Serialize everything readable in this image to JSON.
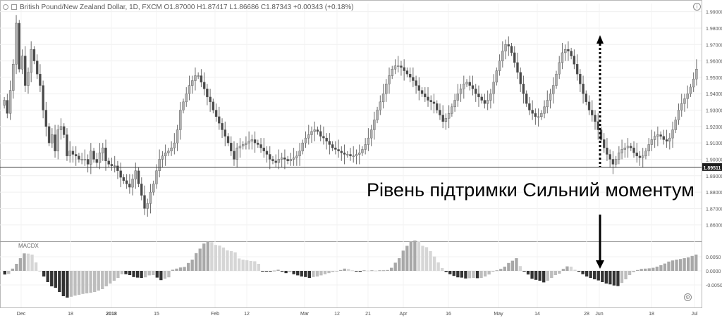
{
  "header": {
    "symbol": "British Pound/New Zealand Dollar, 1D, FXCM",
    "ohlc": "O1.87000 H1.87417 L1.86686 C1.87343 +0.00343 (+0.18%)"
  },
  "annotation": "Рівень підтримки Сильний моментум",
  "macd_label": "MACDX",
  "icons": {
    "info": "info-icon",
    "settings": "settings-icon",
    "header": [
      "eye-icon",
      "menu-icon"
    ]
  },
  "chart_data": [
    {
      "type": "candlestick",
      "ylim": [
        1.85,
        1.995
      ],
      "yticks": [
        "1.99000",
        "1.98000",
        "1.97000",
        "1.96000",
        "1.95000",
        "1.94000",
        "1.93000",
        "1.92000",
        "1.91000",
        "1.90000",
        "1.89000",
        "1.88000",
        "1.87000",
        "1.86000"
      ],
      "current_price": "1.89511",
      "support_level": 1.8951,
      "xticks": [
        "Dec",
        "18",
        "2018",
        "15",
        "Feb",
        "12",
        "Mar",
        "12",
        "21",
        "Apr",
        "16",
        "May",
        "14",
        "28",
        "Jun",
        "18",
        "Jul"
      ],
      "closes": [
        1.936,
        1.928,
        1.942,
        1.958,
        1.983,
        1.955,
        1.963,
        1.945,
        1.953,
        1.967,
        1.96,
        1.952,
        1.945,
        1.93,
        1.92,
        1.91,
        1.915,
        1.905,
        1.918,
        1.92,
        1.915,
        1.902,
        1.905,
        1.903,
        1.902,
        1.9,
        1.9,
        1.9,
        1.897,
        1.905,
        1.9,
        1.898,
        1.904,
        1.907,
        1.899,
        1.897,
        1.896,
        1.896,
        1.893,
        1.889,
        1.887,
        1.885,
        1.883,
        1.888,
        1.893,
        1.885,
        1.878,
        1.87,
        1.873,
        1.88,
        1.885,
        1.893,
        1.9,
        1.902,
        1.904,
        1.905,
        1.907,
        1.91,
        1.918,
        1.93,
        1.935,
        1.94,
        1.945,
        1.948,
        1.951,
        1.951,
        1.947,
        1.943,
        1.938,
        1.935,
        1.93,
        1.926,
        1.922,
        1.918,
        1.914,
        1.91,
        1.905,
        1.9,
        1.907,
        1.908,
        1.909,
        1.91,
        1.911,
        1.912,
        1.91,
        1.909,
        1.907,
        1.905,
        1.903,
        1.9,
        1.899,
        1.898,
        1.9,
        1.901,
        1.9,
        1.899,
        1.9,
        1.901,
        1.902,
        1.905,
        1.91,
        1.913,
        1.915,
        1.917,
        1.918,
        1.917,
        1.914,
        1.913,
        1.911,
        1.909,
        1.907,
        1.906,
        1.905,
        1.904,
        1.903,
        1.903,
        1.902,
        1.902,
        1.903,
        1.904,
        1.906,
        1.909,
        1.913,
        1.918,
        1.924,
        1.93,
        1.935,
        1.94,
        1.946,
        1.951,
        1.955,
        1.957,
        1.957,
        1.956,
        1.954,
        1.952,
        1.95,
        1.948,
        1.945,
        1.942,
        1.94,
        1.938,
        1.936,
        1.935,
        1.934,
        1.93,
        1.927,
        1.923,
        1.925,
        1.928,
        1.932,
        1.936,
        1.94,
        1.943,
        1.946,
        1.947,
        1.945,
        1.943,
        1.94,
        1.938,
        1.936,
        1.934,
        1.936,
        1.94,
        1.947,
        1.954,
        1.96,
        1.966,
        1.97,
        1.969,
        1.965,
        1.959,
        1.953,
        1.946,
        1.94,
        1.934,
        1.93,
        1.928,
        1.926,
        1.926,
        1.928,
        1.932,
        1.936,
        1.94,
        1.945,
        1.952,
        1.959,
        1.965,
        1.967,
        1.966,
        1.963,
        1.958,
        1.952,
        1.946,
        1.94,
        1.935,
        1.93,
        1.927,
        1.923,
        1.918,
        1.912,
        1.907,
        1.903,
        1.9,
        1.897,
        1.9,
        1.904,
        1.906,
        1.907,
        1.908,
        1.907,
        1.904,
        1.902,
        1.901,
        1.902,
        1.905,
        1.909,
        1.912,
        1.914,
        1.915,
        1.914,
        1.912,
        1.911,
        1.913,
        1.918,
        1.924,
        1.93,
        1.934,
        1.937,
        1.94,
        1.944,
        1.949,
        1.955
      ],
      "macd": [
        -0.0013,
        -0.0011,
        0.0008,
        0.0025,
        0.0045,
        0.0062,
        0.0061,
        0.0058,
        0.003,
        0.0,
        -0.002,
        -0.004,
        -0.0055,
        -0.006,
        -0.0075,
        -0.009,
        -0.0095,
        -0.0092,
        -0.0088,
        -0.0085,
        -0.0082,
        -0.008,
        -0.0078,
        -0.0075,
        -0.007,
        -0.0065,
        -0.0055,
        -0.0045,
        -0.0035,
        -0.0025,
        -0.0012,
        -0.0012,
        -0.0015,
        -0.0022,
        -0.0024,
        -0.0025,
        -0.0023,
        -0.0016,
        -0.0015,
        -0.0024,
        -0.0033,
        -0.0028,
        -0.0023,
        0.0004,
        0.0008,
        0.0012,
        0.0014,
        0.0028,
        0.004,
        0.0063,
        0.0079,
        0.0097,
        0.0104,
        0.0102,
        0.0092,
        0.009,
        0.0083,
        0.0073,
        0.007,
        0.0066,
        0.0044,
        0.004,
        0.0038,
        0.0035,
        0.0034,
        0.0025,
        -0.0001,
        -0.0001,
        -0.0001,
        0.0001,
        0.0004,
        -0.0003,
        -0.0008,
        -0.0005,
        -0.0012,
        -0.0016,
        -0.002,
        -0.0022,
        -0.0025,
        -0.0022,
        -0.002,
        -0.0016,
        -0.0012,
        -0.0008,
        -0.0004,
        -0.0002,
        0.0003,
        0.0008,
        0.0007,
        0.0002,
        -0.0001,
        -0.0003,
        0.0002,
        0.0001,
        0.0002,
        0.0001,
        0.0002,
        0.0002,
        0.0003,
        0.0011,
        0.0029,
        0.0045,
        0.0072,
        0.0089,
        0.0105,
        0.0108,
        0.0105,
        0.0089,
        0.0084,
        0.007,
        0.0051,
        0.003,
        0.001,
        -0.0004,
        -0.0012,
        -0.0018,
        -0.0023,
        -0.0024,
        -0.0027,
        -0.0026,
        -0.0025,
        -0.0026,
        -0.0025,
        -0.002,
        -0.0013,
        -0.0003,
        0.0002,
        0.0007,
        0.0015,
        0.0028,
        0.0036,
        0.0045,
        0.0017,
        -0.0002,
        -0.0013,
        -0.0028,
        -0.0032,
        -0.0035,
        -0.0041,
        -0.0035,
        -0.0025,
        -0.0015,
        -0.001,
        0.0007,
        0.0016,
        0.0015,
        0.0004,
        -0.0003,
        -0.0012,
        -0.002,
        -0.0025,
        -0.003,
        -0.0034,
        -0.004,
        -0.0045,
        -0.0048,
        -0.0052,
        -0.0054,
        -0.0043,
        -0.003,
        -0.0015,
        -0.0005,
        0.0003,
        0.0007,
        0.0008,
        0.0009,
        0.0011,
        0.0015,
        0.002,
        0.0026,
        0.0033,
        0.0037,
        0.004,
        0.0042,
        0.0045,
        0.0048,
        0.0053,
        0.0058
      ]
    }
  ]
}
